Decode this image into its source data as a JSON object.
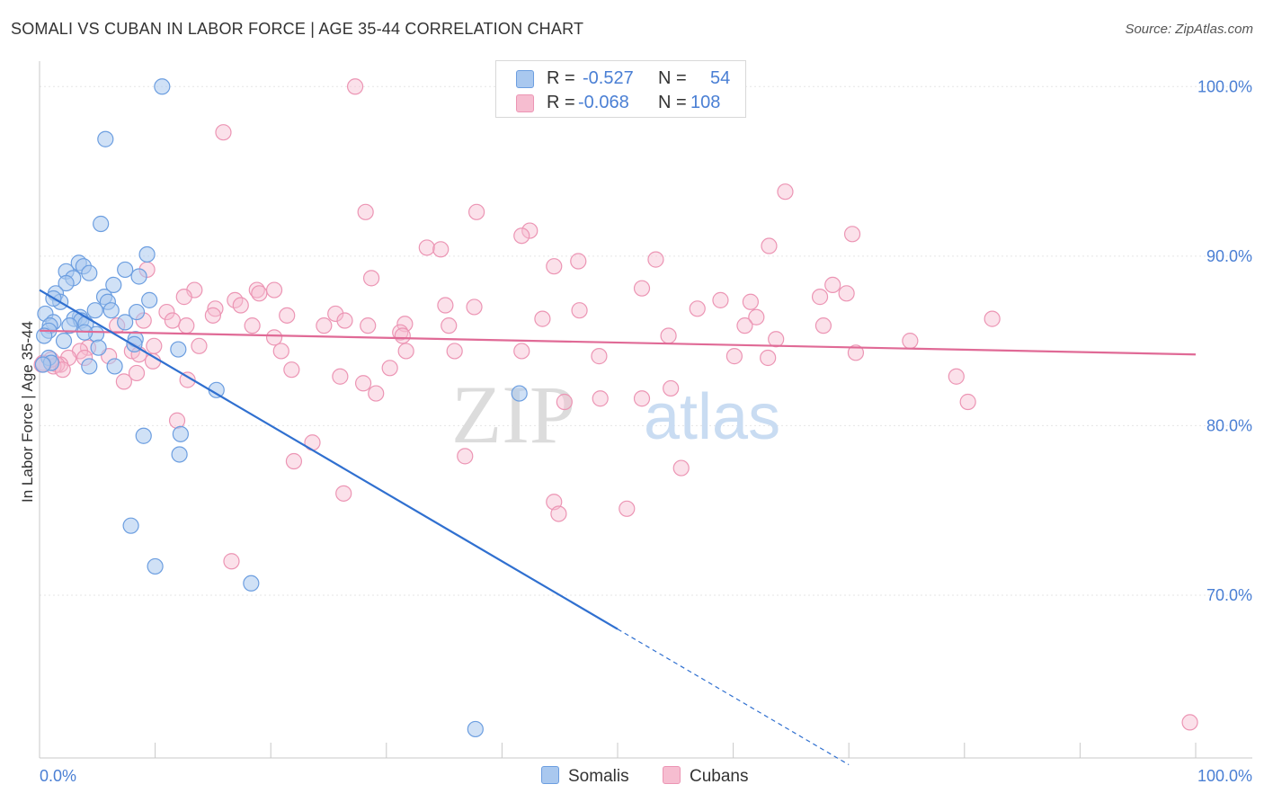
{
  "header": {
    "title": "SOMALI VS CUBAN IN LABOR FORCE | AGE 35-44 CORRELATION CHART",
    "source": "Source: ZipAtlas.com"
  },
  "watermark": {
    "zip": "ZIP",
    "atlas": "atlas"
  },
  "colors": {
    "somali_fill": "#a9c8ef",
    "somali_stroke": "#6c9ee0",
    "somali_line": "#3070d0",
    "cuban_fill": "#f6bdd0",
    "cuban_stroke": "#ec95b4",
    "cuban_line": "#e06a96",
    "grid": "#e5e5e5",
    "tick_label": "#4a7fd4"
  },
  "legend": {
    "rows": [
      {
        "r_label": "R =",
        "r_value": "-0.527",
        "n_label": "N =",
        "n_value": "54"
      },
      {
        "r_label": "R =",
        "r_value": "-0.068",
        "n_label": "N =",
        "n_value": "108"
      }
    ]
  },
  "bottom_legend": {
    "somalis": "Somalis",
    "cubans": "Cubans"
  },
  "chart_data": {
    "type": "scatter",
    "title": "SOMALI VS CUBAN IN LABOR FORCE | AGE 35-44 CORRELATION CHART",
    "xlabel": "",
    "ylabel": "In Labor Force | Age 35-44",
    "xlim": [
      0,
      100
    ],
    "ylim": [
      60.4,
      101.5
    ],
    "x_tick_labels": [
      "0.0%",
      "100.0%"
    ],
    "y_ticks": [
      100,
      90,
      80,
      70
    ],
    "y_tick_labels": [
      "100.0%",
      "90.0%",
      "80.0%",
      "70.0%"
    ],
    "grid": true,
    "series": [
      {
        "name": "Somalis",
        "r": -0.527,
        "n": 54,
        "trend": {
          "x0": 0,
          "y0": 88.0,
          "x1": 50,
          "y1": 68.0,
          "dash_to_x": 70
        },
        "points": [
          [
            10.6,
            100.0
          ],
          [
            5.7,
            96.9
          ],
          [
            5.3,
            91.9
          ],
          [
            9.3,
            90.1
          ],
          [
            3.4,
            89.6
          ],
          [
            7.4,
            89.2
          ],
          [
            2.3,
            89.1
          ],
          [
            3.8,
            89.4
          ],
          [
            4.3,
            89.0
          ],
          [
            2.9,
            88.7
          ],
          [
            8.6,
            88.8
          ],
          [
            6.4,
            88.3
          ],
          [
            2.3,
            88.4
          ],
          [
            1.4,
            87.8
          ],
          [
            1.8,
            87.3
          ],
          [
            1.2,
            87.5
          ],
          [
            5.6,
            87.6
          ],
          [
            9.5,
            87.4
          ],
          [
            5.9,
            87.3
          ],
          [
            8.4,
            86.7
          ],
          [
            6.2,
            86.8
          ],
          [
            4.8,
            86.8
          ],
          [
            0.5,
            86.6
          ],
          [
            3.5,
            86.4
          ],
          [
            3.0,
            86.3
          ],
          [
            3.6,
            86.2
          ],
          [
            1.2,
            86.1
          ],
          [
            4.0,
            86.0
          ],
          [
            7.4,
            86.1
          ],
          [
            0.9,
            85.9
          ],
          [
            2.6,
            85.9
          ],
          [
            4.9,
            85.4
          ],
          [
            0.8,
            85.6
          ],
          [
            0.4,
            85.3
          ],
          [
            3.9,
            85.5
          ],
          [
            8.3,
            85.1
          ],
          [
            2.1,
            85.0
          ],
          [
            5.1,
            84.6
          ],
          [
            8.2,
            84.8
          ],
          [
            12.0,
            84.5
          ],
          [
            0.8,
            84.0
          ],
          [
            1.0,
            83.7
          ],
          [
            0.3,
            83.6
          ],
          [
            4.3,
            83.5
          ],
          [
            6.5,
            83.5
          ],
          [
            15.3,
            82.1
          ],
          [
            41.5,
            81.9
          ],
          [
            12.2,
            79.5
          ],
          [
            9.0,
            79.4
          ],
          [
            12.1,
            78.3
          ],
          [
            7.9,
            74.1
          ],
          [
            10.0,
            71.7
          ],
          [
            18.3,
            70.7
          ],
          [
            37.7,
            62.1
          ]
        ]
      },
      {
        "name": "Cubans",
        "r": -0.068,
        "n": 108,
        "trend": {
          "x0": 0,
          "y0": 85.6,
          "x1": 100,
          "y1": 84.2
        },
        "points": [
          [
            27.3,
            100.0
          ],
          [
            15.9,
            97.3
          ],
          [
            64.5,
            93.8
          ],
          [
            28.2,
            92.6
          ],
          [
            37.8,
            92.6
          ],
          [
            42.4,
            91.5
          ],
          [
            41.7,
            91.2
          ],
          [
            70.3,
            91.3
          ],
          [
            63.1,
            90.6
          ],
          [
            33.5,
            90.5
          ],
          [
            34.7,
            90.4
          ],
          [
            53.3,
            89.8
          ],
          [
            46.6,
            89.7
          ],
          [
            44.5,
            89.4
          ],
          [
            9.3,
            89.2
          ],
          [
            28.7,
            88.7
          ],
          [
            20.3,
            88.0
          ],
          [
            13.4,
            88.0
          ],
          [
            18.8,
            88.0
          ],
          [
            68.6,
            88.3
          ],
          [
            52.1,
            88.1
          ],
          [
            19.0,
            87.8
          ],
          [
            69.8,
            87.8
          ],
          [
            67.5,
            87.6
          ],
          [
            12.5,
            87.6
          ],
          [
            58.9,
            87.4
          ],
          [
            16.9,
            87.4
          ],
          [
            61.5,
            87.3
          ],
          [
            17.4,
            87.1
          ],
          [
            35.1,
            87.1
          ],
          [
            37.6,
            87.0
          ],
          [
            15.2,
            86.9
          ],
          [
            56.9,
            86.9
          ],
          [
            46.7,
            86.8
          ],
          [
            25.6,
            86.6
          ],
          [
            11.0,
            86.7
          ],
          [
            15.0,
            86.5
          ],
          [
            21.4,
            86.5
          ],
          [
            62.0,
            86.4
          ],
          [
            82.4,
            86.3
          ],
          [
            43.5,
            86.3
          ],
          [
            26.4,
            86.2
          ],
          [
            11.5,
            86.2
          ],
          [
            9.0,
            86.2
          ],
          [
            31.6,
            86.0
          ],
          [
            28.4,
            85.9
          ],
          [
            24.6,
            85.9
          ],
          [
            35.4,
            85.9
          ],
          [
            18.4,
            85.9
          ],
          [
            61.0,
            85.9
          ],
          [
            67.8,
            85.9
          ],
          [
            6.7,
            85.9
          ],
          [
            12.7,
            85.9
          ],
          [
            31.2,
            85.5
          ],
          [
            31.4,
            85.3
          ],
          [
            54.4,
            85.3
          ],
          [
            20.3,
            85.2
          ],
          [
            63.7,
            85.1
          ],
          [
            75.3,
            85.0
          ],
          [
            9.9,
            84.7
          ],
          [
            13.8,
            84.7
          ],
          [
            4.2,
            84.6
          ],
          [
            35.9,
            84.4
          ],
          [
            41.7,
            84.4
          ],
          [
            31.7,
            84.4
          ],
          [
            20.9,
            84.4
          ],
          [
            8.0,
            84.4
          ],
          [
            3.5,
            84.4
          ],
          [
            8.6,
            84.2
          ],
          [
            70.6,
            84.3
          ],
          [
            60.1,
            84.1
          ],
          [
            48.4,
            84.1
          ],
          [
            6.0,
            84.1
          ],
          [
            63.0,
            84.0
          ],
          [
            3.9,
            84.0
          ],
          [
            2.5,
            84.0
          ],
          [
            9.8,
            83.8
          ],
          [
            1.8,
            83.6
          ],
          [
            1.5,
            83.6
          ],
          [
            1.0,
            83.9
          ],
          [
            1.2,
            83.5
          ],
          [
            0.3,
            83.7
          ],
          [
            0.2,
            83.6
          ],
          [
            2.0,
            83.3
          ],
          [
            21.8,
            83.3
          ],
          [
            30.3,
            83.4
          ],
          [
            8.4,
            83.1
          ],
          [
            26.0,
            82.9
          ],
          [
            79.3,
            82.9
          ],
          [
            12.8,
            82.7
          ],
          [
            7.3,
            82.6
          ],
          [
            28.0,
            82.5
          ],
          [
            54.6,
            82.2
          ],
          [
            29.1,
            81.9
          ],
          [
            52.1,
            81.6
          ],
          [
            48.5,
            81.6
          ],
          [
            45.4,
            81.4
          ],
          [
            80.3,
            81.4
          ],
          [
            11.9,
            80.3
          ],
          [
            23.6,
            79.0
          ],
          [
            36.8,
            78.2
          ],
          [
            22.0,
            77.9
          ],
          [
            55.5,
            77.5
          ],
          [
            26.3,
            76.0
          ],
          [
            44.5,
            75.5
          ],
          [
            50.8,
            75.1
          ],
          [
            44.9,
            74.8
          ],
          [
            16.6,
            72.0
          ],
          [
            99.5,
            62.5
          ]
        ]
      }
    ]
  }
}
